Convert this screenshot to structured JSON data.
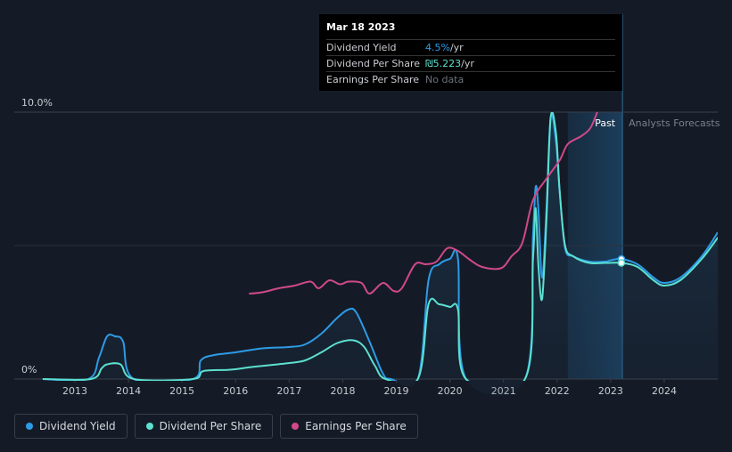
{
  "tooltip": {
    "date": "Mar 18 2023",
    "rows": [
      {
        "label": "Dividend Yield",
        "value": "4.5%",
        "unit": " /yr"
      },
      {
        "label": "Dividend Per Share",
        "value": "₪5.223",
        "unit": " /yr"
      },
      {
        "label": "Earnings Per Share",
        "value": "No data",
        "unit": ""
      }
    ]
  },
  "labels": {
    "past": "Past",
    "forecast": "Analysts Forecasts"
  },
  "legend": [
    {
      "label": "Dividend Yield",
      "color": "#2d9be6"
    },
    {
      "label": "Dividend Per Share",
      "color": "#5ce0d0"
    },
    {
      "label": "Earnings Per Share",
      "color": "#d0498a"
    }
  ],
  "chart_data": {
    "type": "line",
    "y_axis": {
      "min": 0,
      "max": 10,
      "ticks": [
        {
          "value": 0,
          "label": "0%"
        },
        {
          "value": 10,
          "label": "10.0%"
        }
      ]
    },
    "x_axis": {
      "min": 2012.4,
      "max": 2025.0,
      "ticks": [
        {
          "value": 2013,
          "label": "2013"
        },
        {
          "value": 2014,
          "label": "2014"
        },
        {
          "value": 2015,
          "label": "2015"
        },
        {
          "value": 2016,
          "label": "2016"
        },
        {
          "value": 2017,
          "label": "2017"
        },
        {
          "value": 2018,
          "label": "2018"
        },
        {
          "value": 2019,
          "label": "2019"
        },
        {
          "value": 2020,
          "label": "2020"
        },
        {
          "value": 2021,
          "label": "2021"
        },
        {
          "value": 2022,
          "label": "2022"
        },
        {
          "value": 2023,
          "label": "2023"
        },
        {
          "value": 2024,
          "label": "2024"
        }
      ]
    },
    "past_region": {
      "start": 2022.2,
      "end": 2023.22
    },
    "series": [
      {
        "name": "Dividend Yield",
        "color": "#2d9be6",
        "points": [
          [
            2012.4,
            0
          ],
          [
            2013.25,
            0
          ],
          [
            2013.45,
            0.8
          ],
          [
            2013.6,
            1.6
          ],
          [
            2013.75,
            1.6
          ],
          [
            2013.9,
            1.4
          ],
          [
            2014.1,
            0
          ],
          [
            2015.2,
            0
          ],
          [
            2015.35,
            0.7
          ],
          [
            2015.6,
            0.9
          ],
          [
            2016.0,
            1.0
          ],
          [
            2016.5,
            1.15
          ],
          [
            2017.0,
            1.2
          ],
          [
            2017.3,
            1.3
          ],
          [
            2017.6,
            1.7
          ],
          [
            2017.9,
            2.3
          ],
          [
            2018.1,
            2.6
          ],
          [
            2018.25,
            2.5
          ],
          [
            2018.5,
            1.4
          ],
          [
            2018.75,
            0.2
          ],
          [
            2018.9,
            0
          ],
          [
            2019.4,
            0
          ],
          [
            2019.6,
            3.7
          ],
          [
            2019.8,
            4.3
          ],
          [
            2020.0,
            4.5
          ],
          [
            2020.15,
            4.5
          ],
          [
            2020.3,
            0
          ],
          [
            2021.4,
            0
          ],
          [
            2021.55,
            5.4
          ],
          [
            2021.6,
            7.2
          ],
          [
            2021.65,
            6.4
          ],
          [
            2021.72,
            3.8
          ],
          [
            2021.8,
            6.3
          ],
          [
            2021.88,
            9.8
          ],
          [
            2021.98,
            8.9
          ],
          [
            2022.05,
            7.0
          ],
          [
            2022.15,
            4.9
          ],
          [
            2022.3,
            4.6
          ],
          [
            2022.6,
            4.4
          ],
          [
            2022.9,
            4.4
          ],
          [
            2023.0,
            4.45
          ],
          [
            2023.2,
            4.5
          ],
          [
            2023.5,
            4.3
          ],
          [
            2023.8,
            3.8
          ],
          [
            2024.0,
            3.6
          ],
          [
            2024.3,
            3.8
          ],
          [
            2024.7,
            4.6
          ],
          [
            2025.0,
            5.5
          ]
        ]
      },
      {
        "name": "Dividend Per Share",
        "color": "#5ce0d0",
        "points": [
          [
            2012.4,
            0
          ],
          [
            2013.3,
            0
          ],
          [
            2013.5,
            0.4
          ],
          [
            2013.6,
            0.55
          ],
          [
            2013.85,
            0.55
          ],
          [
            2014.1,
            0
          ],
          [
            2015.2,
            0
          ],
          [
            2015.4,
            0.3
          ],
          [
            2015.9,
            0.35
          ],
          [
            2016.3,
            0.45
          ],
          [
            2017.0,
            0.6
          ],
          [
            2017.3,
            0.7
          ],
          [
            2017.6,
            1.0
          ],
          [
            2017.9,
            1.35
          ],
          [
            2018.2,
            1.45
          ],
          [
            2018.4,
            1.2
          ],
          [
            2018.6,
            0.5
          ],
          [
            2018.8,
            0
          ],
          [
            2019.4,
            0
          ],
          [
            2019.6,
            2.8
          ],
          [
            2019.8,
            2.8
          ],
          [
            2020.0,
            2.7
          ],
          [
            2020.15,
            2.6
          ],
          [
            2020.3,
            0
          ],
          [
            2021.4,
            0
          ],
          [
            2021.55,
            4.5
          ],
          [
            2021.6,
            6.4
          ],
          [
            2021.65,
            4.3
          ],
          [
            2021.72,
            3.0
          ],
          [
            2021.8,
            5.9
          ],
          [
            2021.88,
            9.8
          ],
          [
            2021.98,
            9.2
          ],
          [
            2022.05,
            7.0
          ],
          [
            2022.15,
            5.0
          ],
          [
            2022.3,
            4.6
          ],
          [
            2022.6,
            4.35
          ],
          [
            2022.9,
            4.35
          ],
          [
            2023.2,
            4.35
          ],
          [
            2023.5,
            4.2
          ],
          [
            2023.8,
            3.7
          ],
          [
            2024.0,
            3.5
          ],
          [
            2024.3,
            3.7
          ],
          [
            2024.7,
            4.5
          ],
          [
            2025.0,
            5.3
          ]
        ]
      },
      {
        "name": "Earnings Per Share",
        "color": "#d0498a",
        "points": [
          [
            2016.25,
            3.2
          ],
          [
            2016.5,
            3.25
          ],
          [
            2016.8,
            3.4
          ],
          [
            2017.1,
            3.5
          ],
          [
            2017.4,
            3.65
          ],
          [
            2017.55,
            3.4
          ],
          [
            2017.75,
            3.7
          ],
          [
            2017.95,
            3.55
          ],
          [
            2018.1,
            3.65
          ],
          [
            2018.35,
            3.6
          ],
          [
            2018.5,
            3.2
          ],
          [
            2018.75,
            3.6
          ],
          [
            2018.95,
            3.3
          ],
          [
            2019.1,
            3.4
          ],
          [
            2019.35,
            4.3
          ],
          [
            2019.55,
            4.3
          ],
          [
            2019.75,
            4.4
          ],
          [
            2019.95,
            4.9
          ],
          [
            2020.15,
            4.8
          ],
          [
            2020.35,
            4.5
          ],
          [
            2020.6,
            4.2
          ],
          [
            2020.95,
            4.15
          ],
          [
            2021.15,
            4.6
          ],
          [
            2021.35,
            5.1
          ],
          [
            2021.55,
            6.7
          ],
          [
            2021.8,
            7.5
          ],
          [
            2022.05,
            8.2
          ],
          [
            2022.2,
            8.8
          ],
          [
            2022.45,
            9.1
          ],
          [
            2022.62,
            9.4
          ],
          [
            2022.75,
            10.0
          ]
        ]
      }
    ],
    "markers": [
      {
        "series": "Dividend Yield",
        "x": 2023.2,
        "y": 4.5
      },
      {
        "series": "Dividend Per Share",
        "x": 2023.2,
        "y": 4.35
      }
    ]
  }
}
